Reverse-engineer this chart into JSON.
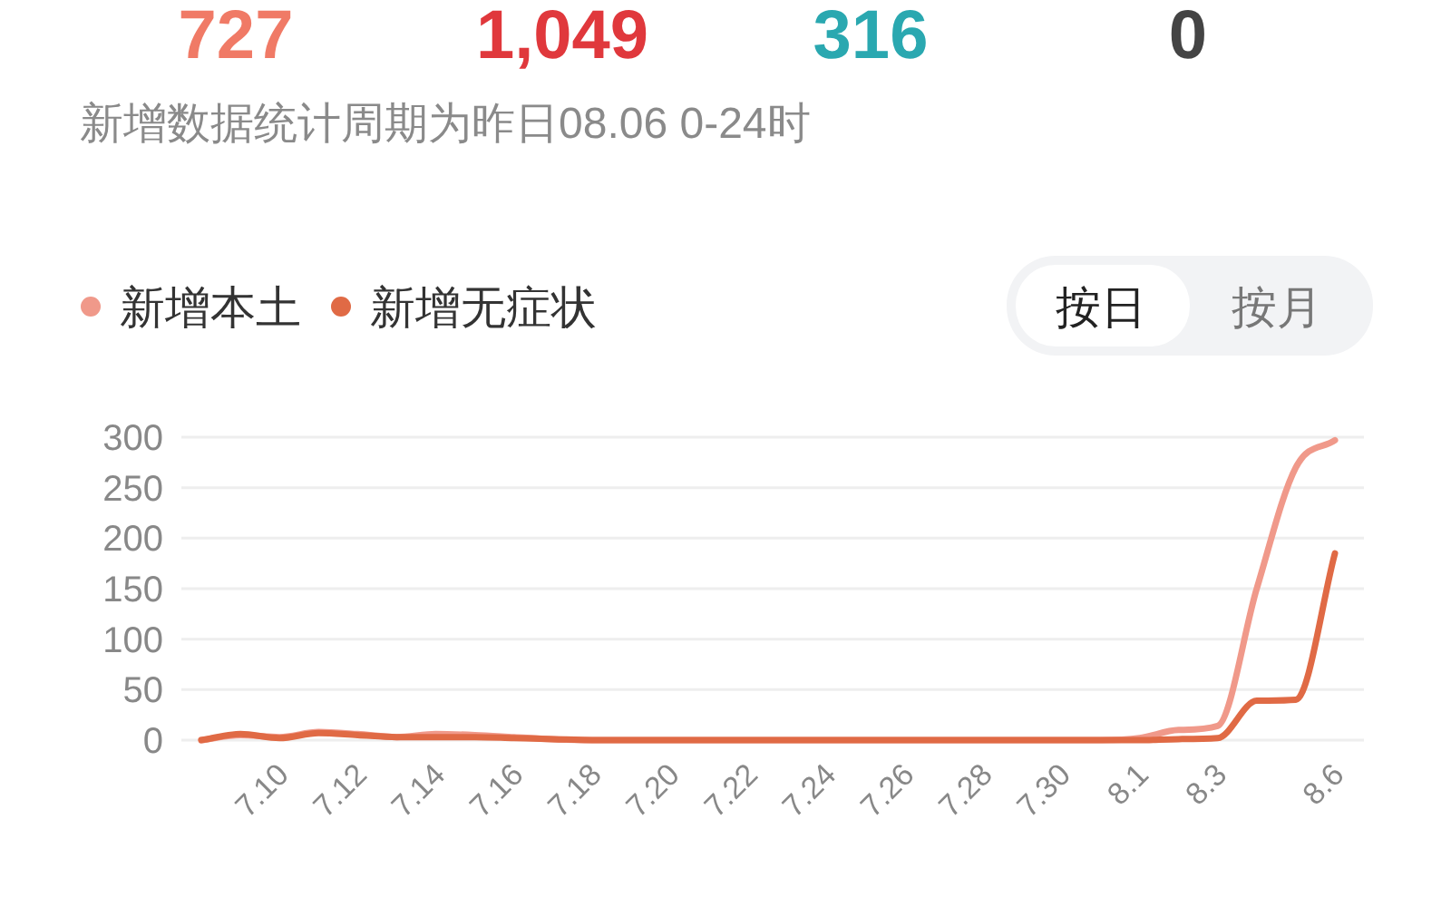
{
  "chart_data": {
    "type": "line",
    "subtitle": "新增数据统计周期为昨日08.06 0-24时",
    "annotations": [
      "727",
      "1,049",
      "316",
      "0",
      "按日",
      "按月"
    ],
    "categories": [
      null,
      null,
      "7.10",
      null,
      "7.12",
      null,
      "7.14",
      null,
      "7.16",
      null,
      "7.18",
      null,
      "7.20",
      null,
      "7.22",
      null,
      "7.24",
      null,
      "7.26",
      null,
      "7.28",
      null,
      "7.30",
      null,
      "8.1",
      null,
      "8.3",
      null,
      null,
      "8.6"
    ],
    "series": [
      {
        "name": "新增本土",
        "color": "#f0998a",
        "values": [
          0,
          5,
          3,
          8,
          6,
          3,
          6,
          5,
          3,
          1,
          0,
          0,
          0,
          0,
          0,
          0,
          0,
          0,
          0,
          0,
          0,
          0,
          0,
          0,
          2,
          10,
          14,
          150,
          270,
          297
        ]
      },
      {
        "name": "新增无症状",
        "color": "#e06a45",
        "values": [
          0,
          6,
          2,
          7,
          5,
          3,
          3,
          3,
          2,
          1,
          0,
          0,
          0,
          0,
          0,
          0,
          0,
          0,
          0,
          0,
          0,
          0,
          0,
          0,
          0,
          1,
          2,
          39,
          40,
          185
        ]
      }
    ],
    "ylim": [
      0,
      300
    ],
    "yticks": [
      0,
      50,
      100,
      150,
      200,
      250,
      300
    ],
    "grid": "y",
    "legend": "top left",
    "marker": "none",
    "line_style": "solid"
  }
}
